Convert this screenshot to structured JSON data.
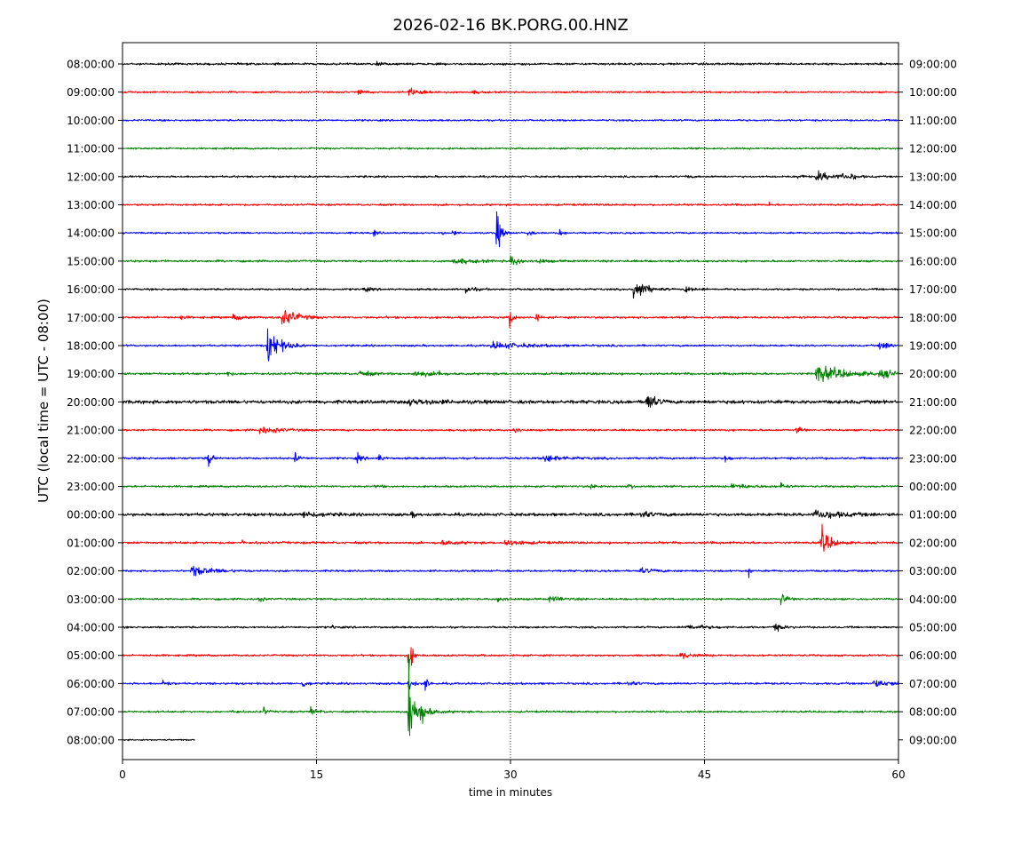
{
  "chart_data": {
    "type": "line",
    "title": "2026-02-16 BK.PORG.00.HNZ",
    "xlabel": "time in minutes",
    "ylabel": "UTC (local time = UTC - 08:00)",
    "xlim": [
      0,
      60
    ],
    "xticks": [
      "0",
      "15",
      "30",
      "45",
      "60"
    ],
    "grid": "vertical dotted at 15, 30, 45",
    "colors": [
      "#000000",
      "#ff0000",
      "#0000ff",
      "#008000"
    ],
    "rows": [
      {
        "left": "08:00:00",
        "right": "09:00:00",
        "color": "#000000",
        "end_minute": 60,
        "noise": 1.2,
        "events": [
          {
            "t": 11.8,
            "amp": 3,
            "dur": 0.1
          },
          {
            "t": 19.6,
            "amp": 3,
            "dur": 0.3
          }
        ]
      },
      {
        "left": "09:00:00",
        "right": "10:00:00",
        "color": "#ff0000",
        "end_minute": 60,
        "noise": 1.0,
        "events": [
          {
            "t": 18.2,
            "amp": 3,
            "dur": 0.5
          },
          {
            "t": 22.1,
            "amp": 4,
            "dur": 1.2
          },
          {
            "t": 27.0,
            "amp": 2,
            "dur": 0.5
          }
        ]
      },
      {
        "left": "10:00:00",
        "right": "11:00:00",
        "color": "#0000ff",
        "end_minute": 60,
        "noise": 1.0,
        "events": []
      },
      {
        "left": "11:00:00",
        "right": "12:00:00",
        "color": "#008000",
        "end_minute": 60,
        "noise": 1.0,
        "events": []
      },
      {
        "left": "12:00:00",
        "right": "13:00:00",
        "color": "#000000",
        "end_minute": 60,
        "noise": 1.1,
        "events": [
          {
            "t": 43.6,
            "amp": 3,
            "dur": 0.2
          },
          {
            "t": 52.2,
            "amp": 3,
            "dur": 0.3
          },
          {
            "t": 53.6,
            "amp": 6,
            "dur": 1.2
          },
          {
            "t": 55.6,
            "amp": 4,
            "dur": 0.3
          },
          {
            "t": 56.3,
            "amp": 4,
            "dur": 0.3
          }
        ]
      },
      {
        "left": "13:00:00",
        "right": "14:00:00",
        "color": "#ff0000",
        "end_minute": 60,
        "noise": 1.1,
        "events": [
          {
            "t": 50.0,
            "amp": 3,
            "dur": 0.1
          }
        ]
      },
      {
        "left": "14:00:00",
        "right": "15:00:00",
        "color": "#0000ff",
        "end_minute": 60,
        "noise": 1.0,
        "events": [
          {
            "t": 19.4,
            "amp": 4,
            "dur": 0.3
          },
          {
            "t": 24.6,
            "amp": 3,
            "dur": 0.2
          },
          {
            "t": 25.5,
            "amp": 4,
            "dur": 0.2
          },
          {
            "t": 28.9,
            "amp": 27,
            "dur": 0.3
          },
          {
            "t": 31.3,
            "amp": 6,
            "dur": 0.2
          },
          {
            "t": 33.7,
            "amp": 5,
            "dur": 0.3
          }
        ]
      },
      {
        "left": "15:00:00",
        "right": "16:00:00",
        "color": "#008000",
        "end_minute": 60,
        "noise": 1.2,
        "events": [
          {
            "t": 25.5,
            "amp": 3,
            "dur": 1.5
          },
          {
            "t": 30.0,
            "amp": 6,
            "dur": 0.6
          },
          {
            "t": 32.0,
            "amp": 3,
            "dur": 0.6
          }
        ]
      },
      {
        "left": "16:00:00",
        "right": "17:00:00",
        "color": "#000000",
        "end_minute": 60,
        "noise": 1.1,
        "events": [
          {
            "t": 18.5,
            "amp": 3,
            "dur": 0.5
          },
          {
            "t": 26.5,
            "amp": 4,
            "dur": 0.6
          },
          {
            "t": 39.5,
            "amp": 17,
            "dur": 0.7
          },
          {
            "t": 43.5,
            "amp": 4,
            "dur": 0.6
          }
        ]
      },
      {
        "left": "17:00:00",
        "right": "18:00:00",
        "color": "#ff0000",
        "end_minute": 60,
        "noise": 1.2,
        "events": [
          {
            "t": 4.4,
            "amp": 3,
            "dur": 0.3
          },
          {
            "t": 8.5,
            "amp": 3,
            "dur": 0.8
          },
          {
            "t": 12.3,
            "amp": 13,
            "dur": 0.9
          },
          {
            "t": 29.9,
            "amp": 16,
            "dur": 0.2
          },
          {
            "t": 31.9,
            "amp": 8,
            "dur": 0.2
          }
        ]
      },
      {
        "left": "18:00:00",
        "right": "19:00:00",
        "color": "#0000ff",
        "end_minute": 60,
        "noise": 1.1,
        "events": [
          {
            "t": 11.2,
            "amp": 22,
            "dur": 0.8
          },
          {
            "t": 28.5,
            "amp": 4,
            "dur": 2.5
          },
          {
            "t": 58.5,
            "amp": 4,
            "dur": 1.2
          }
        ]
      },
      {
        "left": "19:00:00",
        "right": "20:00:00",
        "color": "#008000",
        "end_minute": 60,
        "noise": 1.3,
        "events": [
          {
            "t": 8.1,
            "amp": 4,
            "dur": 0.2
          },
          {
            "t": 18.3,
            "amp": 5,
            "dur": 0.6
          },
          {
            "t": 22.5,
            "amp": 3,
            "dur": 1.2
          },
          {
            "t": 24.4,
            "amp": 15,
            "dur": 0.1
          },
          {
            "t": 53.6,
            "amp": 11,
            "dur": 1.8
          },
          {
            "t": 58.5,
            "amp": 4,
            "dur": 1.5
          }
        ]
      },
      {
        "left": "20:00:00",
        "right": "21:00:00",
        "color": "#000000",
        "end_minute": 60,
        "noise": 2.0,
        "events": [
          {
            "t": 40.5,
            "amp": 13,
            "dur": 0.5
          },
          {
            "t": 22.0,
            "amp": 3,
            "dur": 2.0
          }
        ]
      },
      {
        "left": "21:00:00",
        "right": "22:00:00",
        "color": "#ff0000",
        "end_minute": 60,
        "noise": 1.1,
        "events": [
          {
            "t": 10.5,
            "amp": 5,
            "dur": 1.2
          },
          {
            "t": 30.2,
            "amp": 6,
            "dur": 0.3
          },
          {
            "t": 52.1,
            "amp": 7,
            "dur": 0.3
          }
        ]
      },
      {
        "left": "22:00:00",
        "right": "23:00:00",
        "color": "#0000ff",
        "end_minute": 60,
        "noise": 1.2,
        "events": [
          {
            "t": 6.6,
            "amp": 16,
            "dur": 0.2
          },
          {
            "t": 13.3,
            "amp": 6,
            "dur": 0.3
          },
          {
            "t": 18.1,
            "amp": 6,
            "dur": 0.3
          },
          {
            "t": 19.8,
            "amp": 7,
            "dur": 0.2
          },
          {
            "t": 32.5,
            "amp": 4,
            "dur": 1.5
          },
          {
            "t": 46.6,
            "amp": 8,
            "dur": 0.2
          }
        ]
      },
      {
        "left": "23:00:00",
        "right": "00:00:00",
        "color": "#008000",
        "end_minute": 60,
        "noise": 1.1,
        "events": [
          {
            "t": 19.6,
            "amp": 3,
            "dur": 0.3
          },
          {
            "t": 36.2,
            "amp": 4,
            "dur": 0.3
          },
          {
            "t": 39.1,
            "amp": 4,
            "dur": 0.3
          },
          {
            "t": 47.0,
            "amp": 3,
            "dur": 1.5
          },
          {
            "t": 50.9,
            "amp": 4,
            "dur": 0.3
          }
        ]
      },
      {
        "left": "00:00:00",
        "right": "01:00:00",
        "color": "#000000",
        "end_minute": 60,
        "noise": 1.8,
        "events": [
          {
            "t": 14.0,
            "amp": 4,
            "dur": 1.0
          },
          {
            "t": 22.4,
            "amp": 5,
            "dur": 0.2
          },
          {
            "t": 40.0,
            "amp": 4,
            "dur": 0.8
          },
          {
            "t": 53.5,
            "amp": 5,
            "dur": 1.8
          }
        ]
      },
      {
        "left": "01:00:00",
        "right": "02:00:00",
        "color": "#ff0000",
        "end_minute": 60,
        "noise": 1.3,
        "events": [
          {
            "t": 9.2,
            "amp": 3,
            "dur": 0.2
          },
          {
            "t": 24.6,
            "amp": 3,
            "dur": 1.0
          },
          {
            "t": 29.5,
            "amp": 3,
            "dur": 1.5
          },
          {
            "t": 54.0,
            "amp": 18,
            "dur": 0.6
          }
        ]
      },
      {
        "left": "02:00:00",
        "right": "03:00:00",
        "color": "#0000ff",
        "end_minute": 60,
        "noise": 1.1,
        "events": [
          {
            "t": 5.3,
            "amp": 6,
            "dur": 1.5
          },
          {
            "t": 40.0,
            "amp": 3,
            "dur": 1.0
          },
          {
            "t": 48.4,
            "amp": 11,
            "dur": 0.1
          }
        ]
      },
      {
        "left": "03:00:00",
        "right": "04:00:00",
        "color": "#008000",
        "end_minute": 60,
        "noise": 1.1,
        "events": [
          {
            "t": 10.5,
            "amp": 4,
            "dur": 0.3
          },
          {
            "t": 29.0,
            "amp": 4,
            "dur": 0.5
          },
          {
            "t": 33.0,
            "amp": 3,
            "dur": 1.0
          },
          {
            "t": 50.9,
            "amp": 8,
            "dur": 0.4
          }
        ]
      },
      {
        "left": "04:00:00",
        "right": "05:00:00",
        "color": "#000000",
        "end_minute": 60,
        "noise": 1.1,
        "events": [
          {
            "t": 16.2,
            "amp": 3,
            "dur": 0.2
          },
          {
            "t": 43.5,
            "amp": 3,
            "dur": 1.5
          },
          {
            "t": 50.3,
            "amp": 5,
            "dur": 0.6
          }
        ]
      },
      {
        "left": "05:00:00",
        "right": "06:00:00",
        "color": "#ff0000",
        "end_minute": 60,
        "noise": 1.1,
        "events": [
          {
            "t": 22.1,
            "amp": 37,
            "dur": 0.2
          },
          {
            "t": 43.1,
            "amp": 4,
            "dur": 0.8
          }
        ]
      },
      {
        "left": "06:00:00",
        "right": "07:00:00",
        "color": "#0000ff",
        "end_minute": 60,
        "noise": 1.2,
        "events": [
          {
            "t": 3.1,
            "amp": 5,
            "dur": 0.3
          },
          {
            "t": 13.9,
            "amp": 6,
            "dur": 0.3
          },
          {
            "t": 22.1,
            "amp": 9,
            "dur": 0.3
          },
          {
            "t": 23.4,
            "amp": 9,
            "dur": 0.2
          },
          {
            "t": 39.0,
            "amp": 3,
            "dur": 0.6
          },
          {
            "t": 58.0,
            "amp": 4,
            "dur": 1.5
          }
        ]
      },
      {
        "left": "07:00:00",
        "right": "08:00:00",
        "color": "#008000",
        "end_minute": 60,
        "noise": 1.1,
        "events": [
          {
            "t": 8.5,
            "amp": 3,
            "dur": 0.3
          },
          {
            "t": 10.9,
            "amp": 6,
            "dur": 0.2
          },
          {
            "t": 14.5,
            "amp": 5,
            "dur": 0.5
          },
          {
            "t": 22.1,
            "amp": 55,
            "dur": 0.5
          },
          {
            "t": 23.0,
            "amp": 5,
            "dur": 1.0
          }
        ]
      },
      {
        "left": "08:00:00",
        "right": "09:00:00",
        "color": "#000000",
        "end_minute": 5.6,
        "noise": 0.8,
        "events": []
      }
    ]
  }
}
